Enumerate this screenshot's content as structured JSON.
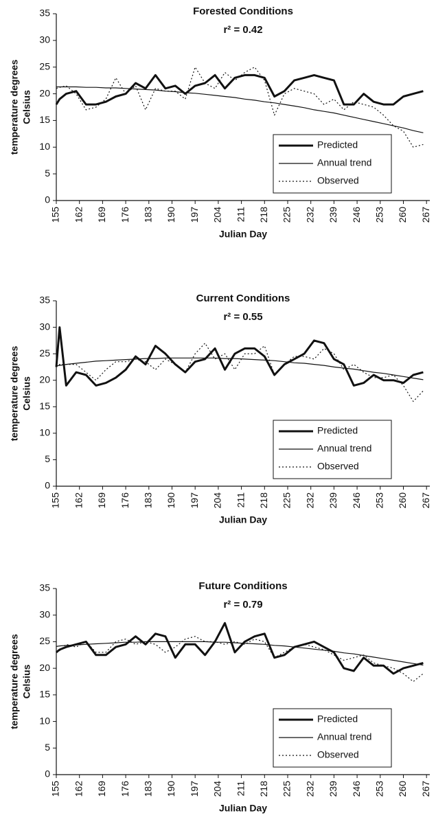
{
  "chart_data": [
    {
      "type": "line",
      "title": "Forested Conditions",
      "annotation": "r² = 0.42",
      "xlabel": "Julian Day",
      "ylabel": [
        "temperature degrees",
        "Celsius"
      ],
      "x": [
        155,
        156,
        158,
        161,
        164,
        167,
        170,
        173,
        176,
        179,
        182,
        185,
        188,
        191,
        194,
        197,
        200,
        203,
        206,
        209,
        212,
        215,
        218,
        221,
        224,
        227,
        230,
        233,
        236,
        239,
        242,
        245,
        248,
        251,
        254,
        257,
        260,
        263,
        266
      ],
      "xlim": [
        155,
        268
      ],
      "xticks": [
        155,
        162,
        169,
        176,
        183,
        190,
        197,
        204,
        211,
        218,
        225,
        232,
        239,
        246,
        253,
        260,
        267
      ],
      "ylim": [
        0,
        35
      ],
      "yticks": [
        0,
        5,
        10,
        15,
        20,
        25,
        30,
        35
      ],
      "legend": "lower right",
      "series": [
        {
          "name": "Predicted",
          "color": "#111111",
          "style": "thick",
          "values": [
            18,
            19,
            20,
            20.5,
            18,
            18,
            18.5,
            19.5,
            20,
            22,
            21,
            23.5,
            21,
            21.5,
            20,
            21.5,
            22,
            23.5,
            21,
            23,
            23.5,
            23.5,
            23,
            19.5,
            20.5,
            22.5,
            23,
            23.5,
            23,
            22.5,
            18,
            18,
            20,
            18.5,
            18,
            18,
            19.5,
            20,
            20.5
          ]
        },
        {
          "name": "Annual trend",
          "color": "#111111",
          "style": "thin",
          "values": [
            21.3,
            21.3,
            21.3,
            21.3,
            21.2,
            21.2,
            21.1,
            21.1,
            21,
            20.9,
            20.8,
            20.7,
            20.5,
            20.4,
            20.2,
            20.1,
            19.9,
            19.7,
            19.5,
            19.3,
            19,
            18.8,
            18.5,
            18.3,
            18,
            17.7,
            17.4,
            17,
            16.7,
            16.4,
            16,
            15.6,
            15.2,
            14.8,
            14.4,
            14,
            13.6,
            13.1,
            12.7
          ]
        },
        {
          "name": "Observed",
          "color": "#111111",
          "style": "dotted",
          "values": [
            21,
            21.2,
            21.5,
            20,
            17,
            17.5,
            19,
            23,
            20,
            21.5,
            17,
            21,
            20.5,
            20.5,
            19,
            25,
            22,
            21,
            24,
            22.5,
            24,
            25,
            22.5,
            16,
            20,
            21,
            20.5,
            20,
            18,
            19,
            17,
            18.5,
            18,
            17.5,
            16,
            14,
            13,
            10,
            10.5
          ]
        }
      ]
    },
    {
      "type": "line",
      "title": "Current Conditions",
      "annotation": "r² = 0.55",
      "xlabel": "Julian Day",
      "ylabel": [
        "temperature degrees",
        "Celsius"
      ],
      "x": [
        155,
        156,
        158,
        161,
        164,
        167,
        170,
        173,
        176,
        179,
        182,
        185,
        188,
        191,
        194,
        197,
        200,
        203,
        206,
        209,
        212,
        215,
        218,
        221,
        224,
        227,
        230,
        233,
        236,
        239,
        242,
        245,
        248,
        251,
        254,
        257,
        260,
        263,
        266
      ],
      "xlim": [
        155,
        268
      ],
      "xticks": [
        155,
        162,
        169,
        176,
        183,
        190,
        197,
        204,
        211,
        218,
        225,
        232,
        239,
        246,
        253,
        260,
        267
      ],
      "ylim": [
        0,
        35
      ],
      "yticks": [
        0,
        5,
        10,
        15,
        20,
        25,
        30,
        35
      ],
      "legend": "lower right",
      "series": [
        {
          "name": "Predicted",
          "color": "#111111",
          "style": "thick",
          "values": [
            22.5,
            30,
            19,
            21.5,
            21,
            19,
            19.5,
            20.5,
            22,
            24.5,
            23,
            26.5,
            25,
            23,
            21.5,
            23.5,
            24,
            26,
            22,
            25,
            26,
            26,
            24.5,
            21,
            23,
            24,
            25,
            27.5,
            27,
            24,
            23,
            19,
            19.5,
            21,
            20,
            20,
            19.5,
            21,
            21.5
          ]
        },
        {
          "name": "Annual trend",
          "color": "#111111",
          "style": "thin",
          "values": [
            22.7,
            22.8,
            23,
            23.2,
            23.4,
            23.6,
            23.7,
            23.8,
            23.9,
            24,
            24.1,
            24.1,
            24.2,
            24.2,
            24.2,
            24.2,
            24.2,
            24.2,
            24.1,
            24.1,
            24,
            23.9,
            23.8,
            23.7,
            23.5,
            23.3,
            23.2,
            23,
            22.8,
            22.5,
            22.3,
            22.1,
            21.8,
            21.5,
            21.3,
            21,
            20.7,
            20.4,
            20.1
          ]
        },
        {
          "name": "Observed",
          "color": "#111111",
          "style": "dotted",
          "values": [
            22.5,
            23,
            23,
            23,
            21.5,
            20,
            22,
            23.5,
            23.5,
            24,
            23.5,
            22,
            24,
            23,
            21.5,
            25,
            27,
            24,
            25,
            22,
            25,
            25,
            26.5,
            21,
            23,
            24.5,
            24.5,
            24,
            26,
            25,
            22,
            23,
            21.5,
            20.5,
            20.5,
            21,
            19,
            16,
            18
          ]
        }
      ]
    },
    {
      "type": "line",
      "title": "Future Conditions",
      "annotation": "r² = 0.79",
      "xlabel": "Julian Day",
      "ylabel": [
        "temperature degrees",
        "Celsius"
      ],
      "x": [
        155,
        156,
        158,
        161,
        164,
        167,
        170,
        173,
        176,
        179,
        182,
        185,
        188,
        191,
        194,
        197,
        200,
        203,
        206,
        209,
        212,
        215,
        218,
        221,
        224,
        227,
        230,
        233,
        236,
        239,
        242,
        245,
        248,
        251,
        254,
        257,
        260,
        263,
        266
      ],
      "xlim": [
        155,
        268
      ],
      "xticks": [
        155,
        162,
        169,
        176,
        183,
        190,
        197,
        204,
        211,
        218,
        225,
        232,
        239,
        246,
        253,
        260,
        267
      ],
      "ylim": [
        0,
        35
      ],
      "yticks": [
        0,
        5,
        10,
        15,
        20,
        25,
        30,
        35
      ],
      "legend": "lower right",
      "series": [
        {
          "name": "Predicted",
          "color": "#111111",
          "style": "thick",
          "values": [
            23,
            23.5,
            24,
            24.5,
            25,
            22.5,
            22.5,
            24,
            24.5,
            26,
            24.5,
            26.5,
            26,
            22,
            24.5,
            24.5,
            22.5,
            25,
            28.5,
            23,
            25,
            26,
            26.5,
            22,
            22.5,
            24,
            24.5,
            25,
            24,
            23,
            20,
            19.5,
            22,
            20.5,
            20.5,
            19,
            20,
            20.5,
            21
          ]
        },
        {
          "name": "Annual trend",
          "color": "#111111",
          "style": "thin",
          "values": [
            24.1,
            24.2,
            24.3,
            24.4,
            24.5,
            24.6,
            24.7,
            24.8,
            24.9,
            24.9,
            25,
            25,
            25,
            25,
            25,
            25,
            25,
            24.9,
            24.9,
            24.8,
            24.7,
            24.6,
            24.5,
            24.3,
            24.2,
            24,
            23.8,
            23.6,
            23.4,
            23.2,
            22.9,
            22.7,
            22.4,
            22.1,
            21.8,
            21.5,
            21.2,
            20.9,
            20.6
          ]
        },
        {
          "name": "Observed",
          "color": "#111111",
          "style": "dotted",
          "values": [
            23,
            23.3,
            24.5,
            24,
            25,
            23,
            23,
            25,
            25.5,
            24.5,
            25,
            24.5,
            23,
            24,
            25.5,
            26,
            25,
            25,
            24.5,
            25,
            24.5,
            25.5,
            25,
            22,
            23,
            24,
            24.5,
            24,
            23.5,
            22.5,
            21.5,
            22,
            22.5,
            21,
            20.5,
            20,
            19,
            17.5,
            19
          ]
        }
      ]
    }
  ]
}
